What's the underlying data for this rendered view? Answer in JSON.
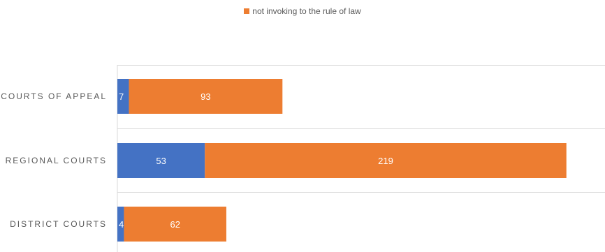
{
  "chart_data": {
    "type": "bar",
    "orientation": "horizontal",
    "stacked": true,
    "categories": [
      "COURTS OF APPEAL",
      "REGIONAL COURTS",
      "DISTRICT COURTS"
    ],
    "series": [
      {
        "values": [
          7,
          53,
          4
        ],
        "color": "#4472c4"
      },
      {
        "name": "not invoking to the rule of law",
        "values": [
          93,
          219,
          62
        ],
        "color": "#ed7d31"
      }
    ],
    "legend": "top",
    "grid": "horizontal"
  }
}
